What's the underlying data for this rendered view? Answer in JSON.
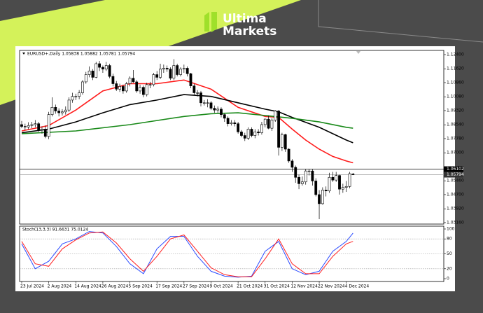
{
  "brand": {
    "line1": "Ultima",
    "line2": "Markets"
  },
  "chart_data": [
    {
      "type": "candlestick",
      "title": "EURUSD+,Daily  1.05838 1.05882 1.05781 1.05794",
      "categories": [
        "23 Jul 2024",
        null,
        null,
        null,
        null,
        null,
        null,
        null,
        "2 Aug 2024",
        null,
        null,
        null,
        null,
        null,
        null,
        null,
        "14 Aug 2024",
        null,
        null,
        null,
        null,
        null,
        null,
        null,
        "26 Aug 2024",
        null,
        null,
        null,
        null,
        null,
        null,
        null,
        "5 Sep 2024",
        null,
        null,
        null,
        null,
        null,
        null,
        null,
        "17 Sep 2024",
        null,
        null,
        null,
        null,
        null,
        null,
        null,
        "27 Sep 2024",
        null,
        null,
        null,
        null,
        null,
        null,
        null,
        "9 Oct 2024",
        null,
        null,
        null,
        null,
        null,
        null,
        null,
        "21 Oct 2024",
        null,
        null,
        null,
        null,
        null,
        null,
        null,
        "31 Oct 2024",
        null,
        null,
        null,
        null,
        null,
        null,
        null,
        "12 Nov 2024",
        null,
        null,
        null,
        null,
        null,
        null,
        null,
        "22 Nov 2024",
        null,
        null,
        null,
        null,
        null,
        null,
        null,
        "4 Dec 2024",
        null,
        null
      ],
      "candles": [
        [
          1.0855,
          1.0875,
          1.0835,
          1.0845
        ],
        [
          1.0845,
          1.086,
          1.0825,
          1.0842
        ],
        [
          1.0842,
          1.0868,
          1.083,
          1.085
        ],
        [
          1.085,
          1.087,
          1.0835,
          1.0855
        ],
        [
          1.0855,
          1.088,
          1.084,
          1.086
        ],
        [
          1.086,
          1.087,
          1.0815,
          1.0825
        ],
        [
          1.0825,
          1.0845,
          1.0805,
          1.083
        ],
        [
          1.083,
          1.085,
          1.078,
          1.079
        ],
        [
          1.079,
          1.0925,
          1.0775,
          1.091
        ],
        [
          1.091,
          1.1005,
          1.09,
          1.095
        ],
        [
          1.095,
          1.0965,
          1.0915,
          1.093
        ],
        [
          1.093,
          1.0945,
          1.09,
          1.092
        ],
        [
          1.092,
          1.094,
          1.0905,
          1.0925
        ],
        [
          1.0925,
          1.0955,
          1.091,
          1.0935
        ],
        [
          1.0935,
          1.1005,
          1.0925,
          1.099
        ],
        [
          1.099,
          1.103,
          1.0975,
          1.101
        ],
        [
          1.101,
          1.1025,
          1.099,
          1.101
        ],
        [
          1.101,
          1.1045,
          1.0995,
          1.103
        ],
        [
          1.103,
          1.11,
          1.102,
          1.109
        ],
        [
          1.109,
          1.1145,
          1.108,
          1.113
        ],
        [
          1.113,
          1.1175,
          1.1115,
          1.115
        ],
        [
          1.115,
          1.116,
          1.11,
          1.1115
        ],
        [
          1.1115,
          1.12,
          1.111,
          1.119
        ],
        [
          1.119,
          1.1205,
          1.115,
          1.117
        ],
        [
          1.117,
          1.118,
          1.114,
          1.116
        ],
        [
          1.116,
          1.12,
          1.115,
          1.118
        ],
        [
          1.118,
          1.119,
          1.111,
          1.112
        ],
        [
          1.112,
          1.1135,
          1.1065,
          1.108
        ],
        [
          1.108,
          1.1095,
          1.104,
          1.105
        ],
        [
          1.105,
          1.108,
          1.1035,
          1.1065
        ],
        [
          1.1065,
          1.1075,
          1.1025,
          1.104
        ],
        [
          1.104,
          1.109,
          1.103,
          1.108
        ],
        [
          1.108,
          1.112,
          1.1065,
          1.111
        ],
        [
          1.111,
          1.1155,
          1.1085,
          1.109
        ],
        [
          1.109,
          1.11,
          1.103,
          1.104
        ],
        [
          1.104,
          1.1075,
          1.1025,
          1.106
        ],
        [
          1.106,
          1.107,
          1.1005,
          1.102
        ],
        [
          1.102,
          1.1085,
          1.101,
          1.1075
        ],
        [
          1.1075,
          1.109,
          1.1055,
          1.1075
        ],
        [
          1.1075,
          1.114,
          1.1065,
          1.113
        ],
        [
          1.113,
          1.115,
          1.11,
          1.1115
        ],
        [
          1.1115,
          1.119,
          1.1105,
          1.116
        ],
        [
          1.116,
          1.1185,
          1.114,
          1.1165
        ],
        [
          1.1165,
          1.118,
          1.1145,
          1.116
        ],
        [
          1.116,
          1.117,
          1.11,
          1.111
        ],
        [
          1.111,
          1.1215,
          1.11,
          1.118
        ],
        [
          1.118,
          1.119,
          1.112,
          1.113
        ],
        [
          1.113,
          1.117,
          1.112,
          1.116
        ],
        [
          1.116,
          1.1185,
          1.114,
          1.1165
        ],
        [
          1.1165,
          1.1175,
          1.112,
          1.1135
        ],
        [
          1.1135,
          1.114,
          1.1055,
          1.1068
        ],
        [
          1.1068,
          1.108,
          1.102,
          1.103
        ],
        [
          1.103,
          1.1045,
          1.101,
          1.103
        ],
        [
          1.103,
          1.104,
          1.0955,
          1.0975
        ],
        [
          1.0975,
          1.099,
          1.096,
          1.0975
        ],
        [
          1.0975,
          1.0995,
          1.095,
          1.0975
        ],
        [
          1.0975,
          1.0985,
          1.0935,
          1.0945
        ],
        [
          1.0945,
          1.096,
          1.092,
          1.0935
        ],
        [
          1.0935,
          1.0955,
          1.092,
          1.094
        ],
        [
          1.094,
          1.095,
          1.0895,
          1.091
        ],
        [
          1.091,
          1.0915,
          1.087,
          1.089
        ],
        [
          1.089,
          1.09,
          1.0845,
          1.086
        ],
        [
          1.086,
          1.088,
          1.085,
          1.0865
        ],
        [
          1.0865,
          1.088,
          1.0845,
          1.086
        ],
        [
          1.086,
          1.087,
          1.0805,
          1.0815
        ],
        [
          1.0815,
          1.0825,
          1.0785,
          1.0795
        ],
        [
          1.0795,
          1.081,
          1.0765,
          1.078
        ],
        [
          1.078,
          1.084,
          1.077,
          1.083
        ],
        [
          1.083,
          1.084,
          1.0785,
          1.0795
        ],
        [
          1.0795,
          1.083,
          1.078,
          1.0815
        ],
        [
          1.0815,
          1.083,
          1.0795,
          1.081
        ],
        [
          1.081,
          1.087,
          1.08,
          1.0855
        ],
        [
          1.0855,
          1.089,
          1.084,
          1.0885
        ],
        [
          1.0885,
          1.0905,
          1.083,
          1.0835
        ],
        [
          1.0835,
          1.089,
          1.082,
          1.088
        ],
        [
          1.088,
          1.0935,
          1.087,
          1.093
        ],
        [
          1.093,
          1.0935,
          1.0685,
          1.073
        ],
        [
          1.073,
          1.081,
          1.071,
          1.08
        ],
        [
          1.08,
          1.0805,
          1.0705,
          1.072
        ],
        [
          1.072,
          1.0725,
          1.0645,
          1.0655
        ],
        [
          1.0655,
          1.0665,
          1.0595,
          1.062
        ],
        [
          1.062,
          1.063,
          1.0535,
          1.0565
        ],
        [
          1.0565,
          1.058,
          1.05,
          1.053
        ],
        [
          1.053,
          1.057,
          1.052,
          1.054
        ],
        [
          1.054,
          1.061,
          1.0525,
          1.06
        ],
        [
          1.06,
          1.061,
          1.0575,
          1.06
        ],
        [
          1.06,
          1.061,
          1.052,
          1.0545
        ],
        [
          1.0545,
          1.056,
          1.046,
          1.047
        ],
        [
          1.047,
          1.0495,
          1.0335,
          1.042
        ],
        [
          1.042,
          1.051,
          1.0415,
          1.0495
        ],
        [
          1.0495,
          1.0515,
          1.046,
          1.049
        ],
        [
          1.049,
          1.059,
          1.048,
          1.0565
        ],
        [
          1.0565,
          1.0595,
          1.054,
          1.055
        ],
        [
          1.055,
          1.0595,
          1.054,
          1.0575
        ],
        [
          1.0575,
          1.058,
          1.047,
          1.05
        ],
        [
          1.05,
          1.053,
          1.048,
          1.051
        ],
        [
          1.051,
          1.0545,
          1.0485,
          1.0515
        ],
        [
          1.0515,
          1.0595,
          1.0505,
          1.0585
        ],
        [
          1.05838,
          1.05882,
          1.05781,
          1.05794
        ]
      ],
      "series": [
        {
          "color": "#ff1a1a",
          "x": [
            0,
            8,
            16,
            24,
            32,
            40,
            48,
            56,
            64,
            72,
            76,
            80,
            84,
            88,
            92,
            96,
            98
          ],
          "values": [
            1.082,
            1.085,
            1.0935,
            1.104,
            1.108,
            1.108,
            1.11,
            1.105,
            1.095,
            1.09,
            1.0895,
            1.083,
            1.077,
            1.072,
            1.068,
            1.0655,
            1.0645
          ]
        },
        {
          "color": "#000000",
          "x": [
            0,
            8,
            16,
            24,
            32,
            40,
            48,
            56,
            64,
            72,
            76,
            80,
            88,
            96,
            98
          ],
          "values": [
            1.081,
            1.083,
            1.087,
            1.092,
            1.0965,
            1.099,
            1.102,
            1.101,
            1.0975,
            1.094,
            1.0925,
            1.0895,
            1.084,
            1.077,
            1.0755
          ]
        },
        {
          "color": "#1a8a1a",
          "x": [
            0,
            16,
            32,
            48,
            56,
            64,
            72,
            80,
            88,
            96,
            98
          ],
          "values": [
            1.0805,
            1.082,
            1.0855,
            1.09,
            1.0915,
            1.092,
            1.0905,
            1.089,
            1.087,
            1.084,
            1.0835
          ]
        }
      ],
      "ylim": [
        1.0308,
        1.1263
      ],
      "yticks": [
        {
          "value": 1.124,
          "label": "1.12400"
        },
        {
          "value": 1.1162,
          "label": "1.11620"
        },
        {
          "value": 1.1086,
          "label": "1.10860"
        },
        {
          "value": 1.1008,
          "label": "1.10080"
        },
        {
          "value": 1.0932,
          "label": "1.09320"
        },
        {
          "value": 1.0854,
          "label": "1.08540"
        },
        {
          "value": 1.0778,
          "label": "1.07780"
        },
        {
          "value": 1.07,
          "label": "1.07000"
        },
        {
          "value": 1.0546,
          "label": "1.05460"
        },
        {
          "value": 1.047,
          "label": "1.04700"
        },
        {
          "value": 1.0392,
          "label": "1.03920"
        },
        {
          "value": 1.0316,
          "label": "1.03160"
        }
      ],
      "levels": [
        {
          "value": 1.06102,
          "label": "1.06102",
          "color": "#000000"
        },
        {
          "value": 1.05794,
          "label": "1.05794",
          "color": "#9a9a9a"
        }
      ],
      "grid": false
    },
    {
      "type": "line",
      "title": "Stoch(13,3,3) 91.6631 75.0124",
      "x": [
        0,
        4,
        8,
        12,
        16,
        20,
        24,
        28,
        32,
        36,
        40,
        44,
        48,
        52,
        56,
        60,
        64,
        68,
        72,
        76,
        80,
        84,
        88,
        92,
        96,
        98
      ],
      "series": [
        {
          "color": "#2a4bff",
          "values": [
            70,
            20,
            35,
            70,
            80,
            95,
            92,
            65,
            30,
            10,
            60,
            85,
            85,
            45,
            15,
            5,
            3,
            5,
            55,
            75,
            20,
            8,
            15,
            55,
            75,
            91.6631
          ]
        },
        {
          "color": "#ff2020",
          "values": [
            75,
            30,
            25,
            60,
            78,
            92,
            94,
            72,
            40,
            15,
            45,
            80,
            88,
            55,
            22,
            8,
            4,
            4,
            40,
            80,
            30,
            10,
            10,
            45,
            70,
            75.0124
          ]
        }
      ],
      "ylim": [
        0,
        100
      ],
      "yticks": [
        100,
        80,
        50,
        20,
        0
      ],
      "grid": true
    }
  ]
}
